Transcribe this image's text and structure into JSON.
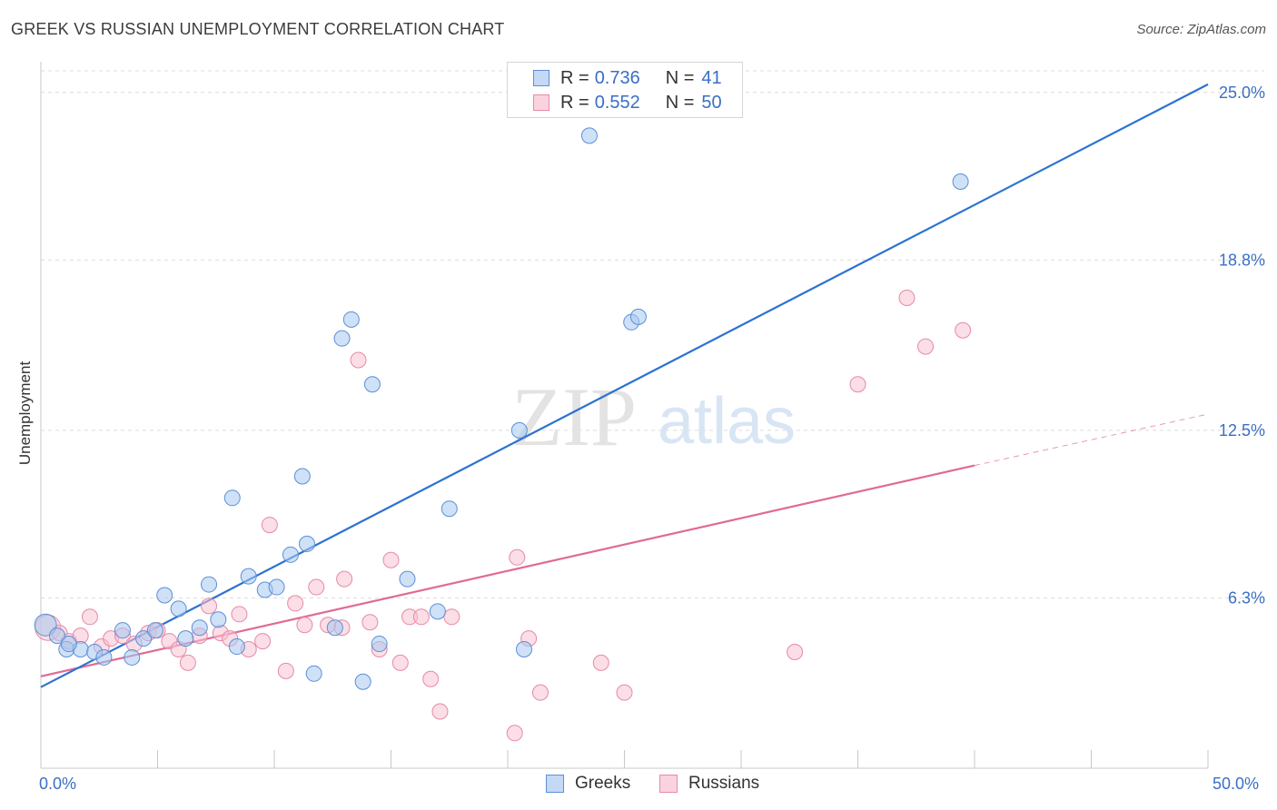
{
  "header": {
    "title": "GREEK VS RUSSIAN UNEMPLOYMENT CORRELATION CHART",
    "source": "Source: ZipAtlas.com"
  },
  "watermark": {
    "zip": "ZIP",
    "atlas": "atlas"
  },
  "legend": {
    "rows": [
      {
        "r_label": "R =",
        "r_value": "0.736",
        "n_label": "N =",
        "n_value": "41",
        "color": "#a8c8f0",
        "border": "#5b8fd6"
      },
      {
        "r_label": "R =",
        "r_value": "0.552",
        "n_label": "N =",
        "n_value": "50",
        "color": "#f8c2d2",
        "border": "#e58aa8"
      }
    ]
  },
  "bottom_legend": {
    "greeks": "Greeks",
    "russians": "Russians"
  },
  "colors": {
    "greeks_fill": "#a8c8f0",
    "greeks_stroke": "#5b8fd6",
    "greeks_line": "#2c72d2",
    "russians_fill": "#f8c2d2",
    "russians_stroke": "#e58aa8",
    "russians_line": "#e06a94",
    "tick_text": "#3a6fc4"
  },
  "chart_data": {
    "type": "scatter",
    "title": "GREEK VS RUSSIAN UNEMPLOYMENT CORRELATION CHART",
    "xlabel": "",
    "ylabel": "Unemployment",
    "xlim": [
      0,
      50
    ],
    "ylim": [
      0,
      26
    ],
    "x_tick_labels": [
      "0.0%",
      "50.0%"
    ],
    "y_ticks": [
      6.3,
      12.5,
      18.8,
      25.0
    ],
    "y_tick_labels": [
      "6.3%",
      "12.5%",
      "18.8%",
      "25.0%"
    ],
    "grid": true,
    "legend_position": "top-center",
    "series": [
      {
        "name": "Greeks",
        "R": 0.736,
        "N": 41,
        "trend": {
          "x0": 0,
          "y0": 3.0,
          "x1": 50,
          "y1": 25.3
        },
        "points": [
          [
            0.2,
            5.3
          ],
          [
            0.7,
            4.9
          ],
          [
            1.1,
            4.4
          ],
          [
            1.7,
            4.4
          ],
          [
            2.3,
            4.3
          ],
          [
            2.7,
            4.1
          ],
          [
            3.5,
            5.1
          ],
          [
            3.9,
            4.1
          ],
          [
            4.4,
            4.8
          ],
          [
            4.9,
            5.1
          ],
          [
            5.3,
            6.4
          ],
          [
            5.9,
            5.9
          ],
          [
            6.2,
            4.8
          ],
          [
            6.8,
            5.2
          ],
          [
            7.2,
            6.8
          ],
          [
            7.6,
            5.5
          ],
          [
            8.2,
            10.0
          ],
          [
            8.4,
            4.5
          ],
          [
            8.9,
            7.1
          ],
          [
            9.6,
            6.6
          ],
          [
            10.1,
            6.7
          ],
          [
            10.7,
            7.9
          ],
          [
            11.2,
            10.8
          ],
          [
            11.4,
            8.3
          ],
          [
            11.7,
            3.5
          ],
          [
            12.6,
            5.2
          ],
          [
            12.9,
            15.9
          ],
          [
            13.3,
            16.6
          ],
          [
            13.8,
            3.2
          ],
          [
            14.2,
            14.2
          ],
          [
            14.5,
            4.6
          ],
          [
            15.7,
            7.0
          ],
          [
            17.0,
            5.8
          ],
          [
            17.5,
            9.6
          ],
          [
            20.5,
            12.5
          ],
          [
            20.7,
            4.4
          ],
          [
            23.5,
            23.4
          ],
          [
            25.3,
            16.5
          ],
          [
            25.6,
            16.7
          ],
          [
            39.4,
            21.7
          ],
          [
            1.2,
            4.6
          ]
        ]
      },
      {
        "name": "Russians",
        "R": 0.552,
        "N": 50,
        "trend": {
          "x0": 0,
          "y0": 3.4,
          "x1": 40,
          "y1": 11.2,
          "dash_x1": 50,
          "dash_y1": 13.1
        },
        "points": [
          [
            0.3,
            5.2
          ],
          [
            0.8,
            5.0
          ],
          [
            1.2,
            4.7
          ],
          [
            1.7,
            4.9
          ],
          [
            2.1,
            5.6
          ],
          [
            2.6,
            4.5
          ],
          [
            3.0,
            4.8
          ],
          [
            3.5,
            4.9
          ],
          [
            4.0,
            4.6
          ],
          [
            4.6,
            5.0
          ],
          [
            5.0,
            5.1
          ],
          [
            5.5,
            4.7
          ],
          [
            5.9,
            4.4
          ],
          [
            6.3,
            3.9
          ],
          [
            6.8,
            4.9
          ],
          [
            7.2,
            6.0
          ],
          [
            7.7,
            5.0
          ],
          [
            8.1,
            4.8
          ],
          [
            8.5,
            5.7
          ],
          [
            8.9,
            4.4
          ],
          [
            9.5,
            4.7
          ],
          [
            9.8,
            9.0
          ],
          [
            10.5,
            3.6
          ],
          [
            10.9,
            6.1
          ],
          [
            11.3,
            5.3
          ],
          [
            11.8,
            6.7
          ],
          [
            12.3,
            5.3
          ],
          [
            12.9,
            5.2
          ],
          [
            13.0,
            7.0
          ],
          [
            13.6,
            15.1
          ],
          [
            14.1,
            5.4
          ],
          [
            14.5,
            4.4
          ],
          [
            15.0,
            7.7
          ],
          [
            15.4,
            3.9
          ],
          [
            15.8,
            5.6
          ],
          [
            16.3,
            5.6
          ],
          [
            16.7,
            3.3
          ],
          [
            17.1,
            2.1
          ],
          [
            17.6,
            5.6
          ],
          [
            20.3,
            1.3
          ],
          [
            20.4,
            7.8
          ],
          [
            20.9,
            4.8
          ],
          [
            21.4,
            2.8
          ],
          [
            24.0,
            3.9
          ],
          [
            25.0,
            2.8
          ],
          [
            32.3,
            4.3
          ],
          [
            35.0,
            14.2
          ],
          [
            37.1,
            17.4
          ],
          [
            37.9,
            15.6
          ],
          [
            39.5,
            16.2
          ]
        ]
      }
    ]
  }
}
